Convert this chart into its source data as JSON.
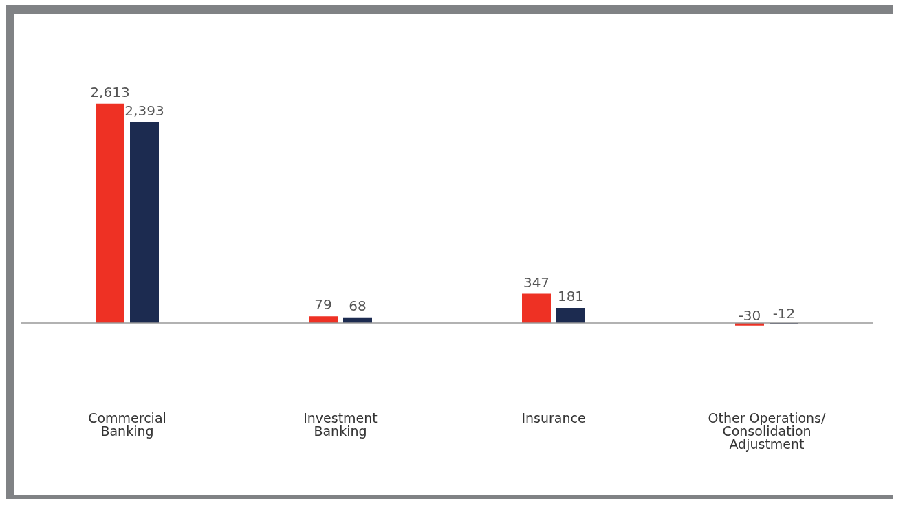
{
  "chart_data": {
    "type": "bar",
    "categories": [
      "Commercial Banking",
      "Investment Banking",
      "Insurance",
      "Other Operations/ Consolidation Adjustment"
    ],
    "series": [
      {
        "color": "#ee3124",
        "values": [
          2613,
          79,
          347,
          -30
        ],
        "value_labels": [
          "2,613",
          "79",
          "347",
          "-30"
        ]
      },
      {
        "color": "#1c2b50",
        "values": [
          2393,
          68,
          181,
          -12
        ],
        "value_labels": [
          "2,393",
          "68",
          "181",
          "-12"
        ]
      }
    ],
    "grid": false,
    "legend": false
  }
}
